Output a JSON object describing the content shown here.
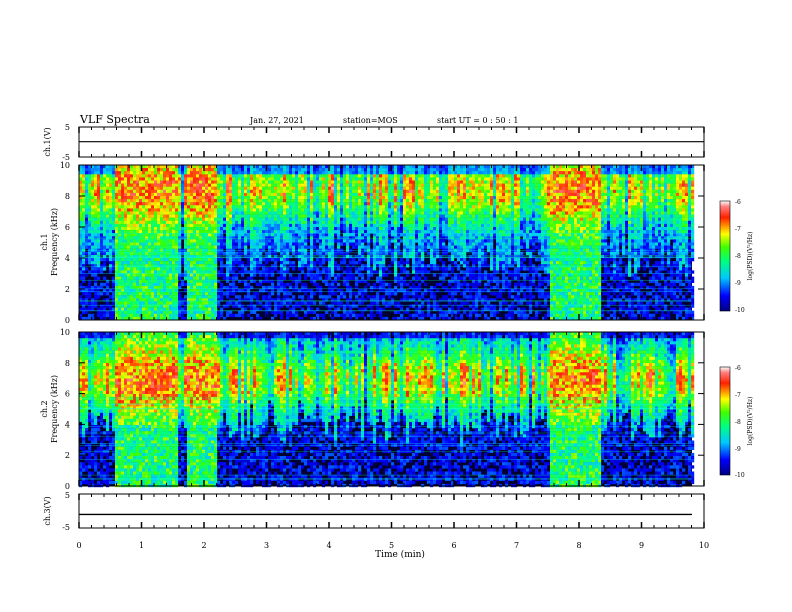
{
  "header": {
    "title": "VLF Spectra",
    "date": "Jan. 27, 2021",
    "station": "station=MOS",
    "start": "start  UT =   0 : 50 : 1"
  },
  "chart_data": [
    {
      "type": "line",
      "panel": "ch.1(V)",
      "ylabel": "ch.1(V)",
      "ylim": [
        -5,
        5
      ],
      "yticks": [
        "5",
        "-5"
      ],
      "xlim": [
        0,
        10
      ],
      "series": [
        {
          "x": [
            0,
            10
          ],
          "values": [
            0.1,
            0.1
          ]
        }
      ]
    },
    {
      "type": "heatmap",
      "panel": "ch.1 spectrogram",
      "ylabel": [
        "ch.1",
        "Frequency (kHz)"
      ],
      "ylim": [
        0,
        10
      ],
      "yticks": [
        "0",
        "2",
        "4",
        "6",
        "8",
        "10"
      ],
      "xlim": [
        0,
        10
      ],
      "colorbar": {
        "label": "log(PSD)(V²/Hz)",
        "ticks": [
          "-6",
          "-7",
          "-8",
          "-9",
          "-10"
        ],
        "range": [
          -10,
          -6
        ]
      },
      "bursts": [
        [
          0.55,
          1.55
        ],
        [
          1.7,
          2.2
        ],
        [
          7.5,
          8.35
        ]
      ],
      "band_center_khz": 8.5
    },
    {
      "type": "heatmap",
      "panel": "ch.2 spectrogram",
      "ylabel": [
        "ch.2",
        "Frequency (kHz)"
      ],
      "ylim": [
        0,
        10
      ],
      "yticks": [
        "0",
        "2",
        "4",
        "6",
        "8",
        "10"
      ],
      "xlim": [
        0,
        10
      ],
      "colorbar": {
        "label": "log(PSD)(V²/Hz)",
        "ticks": [
          "-6",
          "-7",
          "-8",
          "-9",
          "-10"
        ],
        "range": [
          -10,
          -6
        ]
      },
      "bursts": [
        [
          0.55,
          1.55
        ],
        [
          1.7,
          2.2
        ],
        [
          7.5,
          8.35
        ]
      ],
      "band_center_khz": 7
    },
    {
      "type": "line",
      "panel": "ch.3(V)",
      "ylabel": "ch.3(V)",
      "ylim": [
        -5,
        5
      ],
      "yticks": [
        "5",
        "-5"
      ],
      "xlim": [
        0,
        10
      ],
      "xlabel": "Time (min)",
      "xticks": [
        "0",
        "1",
        "2",
        "3",
        "4",
        "5",
        "6",
        "7",
        "8",
        "9",
        "10"
      ],
      "series": [
        {
          "x": [
            0,
            10
          ],
          "values": [
            -1,
            -1
          ]
        }
      ]
    }
  ],
  "colors": {
    "frame": "#000000",
    "background": "#ffffff",
    "colormap": [
      "#000080",
      "#0000ff",
      "#00ffff",
      "#00ff00",
      "#ffff00",
      "#ff0000",
      "#ffffff"
    ]
  }
}
